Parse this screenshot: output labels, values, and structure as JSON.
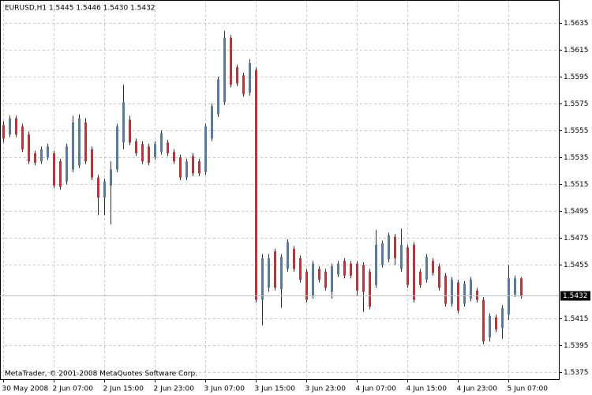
{
  "chart_data": {
    "type": "candlestick",
    "title": "EURUSD,H1  1.5445 1.5446 1.5430 1.5432",
    "footer": "MetaTrader, © 2001-2008 MetaQuotes Software Corp.",
    "last_price": 1.5432,
    "up_color": "#4a7fb3",
    "down_color": "#e3222b",
    "grid": true,
    "ylim": [
      1.537,
      1.5652
    ],
    "yticks": [
      1.5375,
      1.5395,
      1.5415,
      1.5455,
      1.5475,
      1.5495,
      1.5515,
      1.5535,
      1.5555,
      1.5575,
      1.5595,
      1.5615,
      1.5635
    ],
    "x": [
      "30 May 2008",
      null,
      null,
      null,
      null,
      null,
      null,
      null,
      "2 Jun 07:00",
      null,
      null,
      null,
      null,
      null,
      null,
      null,
      "2 Jun 15:00",
      null,
      null,
      null,
      null,
      null,
      null,
      null,
      "2 Jun 23:00",
      null,
      null,
      null,
      null,
      null,
      null,
      null,
      "3 Jun 07:00",
      null,
      null,
      null,
      null,
      null,
      null,
      null,
      "3 Jun 15:00",
      null,
      null,
      null,
      null,
      null,
      null,
      null,
      "3 Jun 23:00",
      null,
      null,
      null,
      null,
      null,
      null,
      null,
      "4 Jun 07:00",
      null,
      null,
      null,
      null,
      null,
      null,
      null,
      "4 Jun 15:00",
      null,
      null,
      null,
      null,
      null,
      null,
      null,
      "4 Jun 23:00",
      null,
      null,
      null,
      null,
      null,
      null,
      null,
      "5 Jun 07:00",
      null,
      null
    ],
    "open": [
      1.5559,
      1.5552,
      1.5564,
      1.5558,
      1.5552,
      1.5538,
      1.5532,
      1.5535,
      1.5538,
      1.5532,
      1.5517,
      1.5526,
      1.5529,
      1.5561,
      1.5541,
      1.552,
      1.5505,
      1.5514,
      1.5526,
      1.5546,
      1.5563,
      1.5547,
      1.5545,
      1.5543,
      1.5535,
      1.5539,
      1.5546,
      1.5539,
      1.5535,
      1.552,
      1.5536,
      1.5532,
      1.5524,
      1.5549,
      1.5567,
      1.5576,
      1.5624,
      1.5602,
      1.5596,
      1.5583,
      1.56,
      1.5429,
      1.5438,
      1.5465,
      1.5437,
      1.5452,
      1.5467,
      1.546,
      1.545,
      1.5432,
      1.5452,
      1.545,
      1.5435,
      1.5448,
      1.5458,
      1.5456,
      1.5456,
      1.5455,
      1.545,
      1.544,
      1.5455,
      1.5459,
      1.5476,
      1.5452,
      1.5468,
      1.547,
      1.545,
      1.5444,
      1.5458,
      1.5454,
      1.5447,
      1.5426,
      1.5442,
      1.5426,
      1.543,
      1.5436,
      1.5429,
      1.5401,
      1.5416,
      1.5408,
      1.5418,
      1.5433,
      1.5445
    ],
    "high": [
      1.5562,
      1.5566,
      1.5566,
      1.556,
      1.5554,
      1.554,
      1.5543,
      1.5545,
      1.554,
      1.5534,
      1.5545,
      1.5566,
      1.5567,
      1.5564,
      1.5543,
      1.5522,
      1.5519,
      1.5532,
      1.556,
      1.5589,
      1.5566,
      1.5549,
      1.5547,
      1.5545,
      1.5547,
      1.5555,
      1.5548,
      1.5541,
      1.5537,
      1.5534,
      1.5538,
      1.5534,
      1.556,
      1.5575,
      1.5595,
      1.5629,
      1.5626,
      1.5604,
      1.5598,
      1.5608,
      1.5602,
      1.5463,
      1.5463,
      1.5467,
      1.5463,
      1.5474,
      1.5469,
      1.5462,
      1.5452,
      1.5458,
      1.5454,
      1.5452,
      1.5456,
      1.5458,
      1.546,
      1.5458,
      1.5458,
      1.5457,
      1.5452,
      1.5481,
      1.5473,
      1.5479,
      1.5478,
      1.5482,
      1.547,
      1.5472,
      1.5452,
      1.5463,
      1.546,
      1.5456,
      1.5449,
      1.5446,
      1.5444,
      1.5443,
      1.5446,
      1.5438,
      1.5431,
      1.5419,
      1.5418,
      1.5425,
      1.5455,
      1.5447,
      1.5446
    ],
    "low": [
      1.5546,
      1.555,
      1.555,
      1.5539,
      1.553,
      1.5529,
      1.553,
      1.5533,
      1.5512,
      1.5511,
      1.5515,
      1.5524,
      1.5527,
      1.553,
      1.5518,
      1.5492,
      1.5492,
      1.5485,
      1.5524,
      1.5541,
      1.5544,
      1.5536,
      1.553,
      1.5529,
      1.5533,
      1.5537,
      1.5536,
      1.553,
      1.5518,
      1.5518,
      1.5521,
      1.5521,
      1.5522,
      1.5547,
      1.5565,
      1.5574,
      1.5587,
      1.5588,
      1.558,
      1.5581,
      1.5427,
      1.541,
      1.5435,
      1.5436,
      1.5423,
      1.545,
      1.545,
      1.5442,
      1.5427,
      1.543,
      1.5442,
      1.5436,
      1.543,
      1.5446,
      1.5445,
      1.5445,
      1.5432,
      1.542,
      1.5422,
      1.5438,
      1.5453,
      1.5457,
      1.5455,
      1.545,
      1.5438,
      1.5427,
      1.5438,
      1.5442,
      1.5447,
      1.5436,
      1.5424,
      1.5424,
      1.5419,
      1.5424,
      1.5428,
      1.5427,
      1.5396,
      1.5398,
      1.5405,
      1.54,
      1.5414,
      1.5431,
      1.543
    ],
    "close": [
      1.5549,
      1.5564,
      1.5552,
      1.5541,
      1.5532,
      1.5531,
      1.5541,
      1.5543,
      1.5514,
      1.5513,
      1.5543,
      1.5561,
      1.5564,
      1.5532,
      1.552,
      1.5505,
      1.5517,
      1.5526,
      1.5558,
      1.5576,
      1.5546,
      1.5538,
      1.5532,
      1.5531,
      1.5545,
      1.5553,
      1.5538,
      1.5532,
      1.552,
      1.5532,
      1.5523,
      1.5523,
      1.5558,
      1.5573,
      1.5593,
      1.5624,
      1.5589,
      1.559,
      1.5582,
      1.5605,
      1.5429,
      1.546,
      1.546,
      1.5438,
      1.5461,
      1.5472,
      1.5452,
      1.5444,
      1.5429,
      1.5456,
      1.5444,
      1.5438,
      1.5454,
      1.5456,
      1.5447,
      1.5447,
      1.5436,
      1.5435,
      1.5424,
      1.547,
      1.5471,
      1.5477,
      1.546,
      1.547,
      1.544,
      1.5429,
      1.544,
      1.5461,
      1.5449,
      1.5438,
      1.5426,
      1.5444,
      1.5421,
      1.5441,
      1.5444,
      1.5429,
      1.5398,
      1.5417,
      1.5407,
      1.5423,
      1.5445,
      1.5445,
      1.5432
    ]
  }
}
